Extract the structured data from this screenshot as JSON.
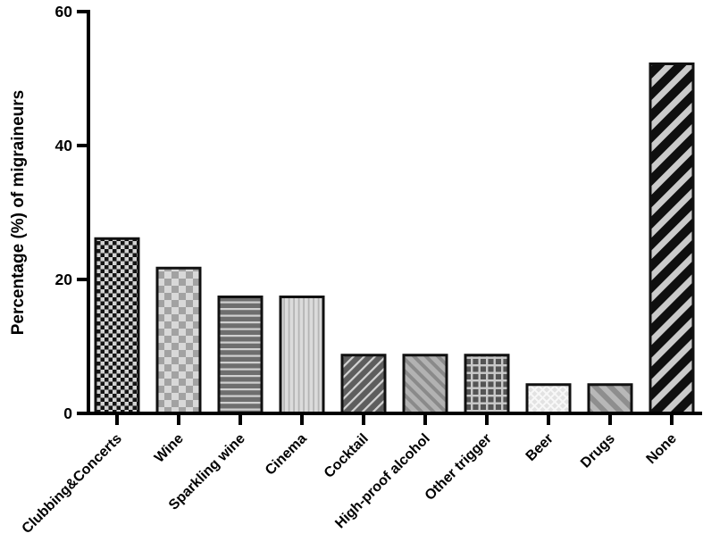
{
  "figure": {
    "background": "#ffffff",
    "axis_color": "#000000",
    "bar_border_color": "#111111"
  },
  "chart_data": {
    "type": "bar",
    "title": "",
    "xlabel": "",
    "ylabel": "Percentage (%) of migraineurs",
    "ylim": [
      0,
      60
    ],
    "yticks": [
      0,
      20,
      40,
      60
    ],
    "grid": false,
    "legend": null,
    "x_tick_label_rotation_deg": 45,
    "categories": [
      "Clubbing&Concerts",
      "Wine",
      "Sparkling wine",
      "Cinema",
      "Cocktail",
      "High-proof alcohol",
      "Other trigger",
      "Beer",
      "Drugs",
      "None"
    ],
    "values": [
      26.1,
      21.7,
      17.4,
      17.4,
      8.7,
      8.7,
      8.7,
      4.3,
      4.3,
      52.2
    ],
    "bar_patterns": [
      {
        "name": "checker-small",
        "kind": "checker",
        "size": 4.5,
        "bg": "#d2d2d2",
        "fg": "#141414"
      },
      {
        "name": "checker-large",
        "kind": "checker",
        "size": 8,
        "bg": "#d8d8d8",
        "fg": "#a2a2a2"
      },
      {
        "name": "horizontal-lines",
        "kind": "stripes",
        "angle": 0,
        "period": 7.5,
        "line": 2.2,
        "bg": "#6e6e6e",
        "fg": "#d0d0d0"
      },
      {
        "name": "vertical-lines",
        "kind": "stripes",
        "angle": 90,
        "period": 5.5,
        "line": 1.8,
        "bg": "#dbdbdb",
        "fg": "#b5b5b5"
      },
      {
        "name": "diagonal-up-thin",
        "kind": "stripes",
        "angle": -45,
        "period": 8.5,
        "line": 2.2,
        "bg": "#5e5e5e",
        "fg": "#d4d4d4"
      },
      {
        "name": "diagonal-down-medium",
        "kind": "stripes",
        "angle": 45,
        "period": 9.5,
        "line": 4,
        "bg": "#b2b2b2",
        "fg": "#8a8a8a"
      },
      {
        "name": "grid",
        "kind": "grid",
        "cell": 8.5,
        "line": 2.4,
        "bg": "#545454",
        "fg": "#c9c9c9"
      },
      {
        "name": "diagonal-crosshatch",
        "kind": "crosshatch",
        "cell": 9,
        "line": 2,
        "bg": "#e2e2e2",
        "fg": "#f8f8f8"
      },
      {
        "name": "diagonal-down-wide",
        "kind": "stripes",
        "angle": 45,
        "period": 12,
        "line": 6,
        "bg": "#b8b8b8",
        "fg": "#8e8e8e"
      },
      {
        "name": "diagonal-up-bold",
        "kind": "stripes",
        "angle": -45,
        "period": 17,
        "line": 7,
        "bg": "#0f0f0f",
        "fg": "#cbcbcb"
      }
    ]
  }
}
